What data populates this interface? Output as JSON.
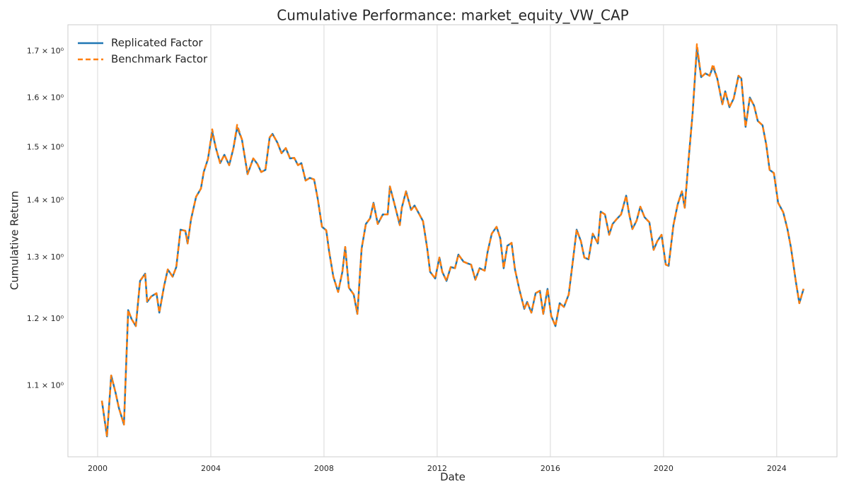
{
  "chart_data": {
    "type": "line",
    "title": "Cumulative Performance: market_equity_VW_CAP",
    "xlabel": "Date",
    "ylabel": "Cumulative Return",
    "log_y": true,
    "xgrid": true,
    "ygrid": false,
    "legend_position": "upper left",
    "xlim": [
      1998.95,
      2026.13
    ],
    "ylim": [
      1.003,
      1.76
    ],
    "xticks": [
      2000,
      2004,
      2008,
      2012,
      2016,
      2020,
      2024
    ],
    "yticks": [
      {
        "value": 1.1,
        "label": "1.1 × 10⁰"
      },
      {
        "value": 1.2,
        "label": "1.2 × 10⁰"
      },
      {
        "value": 1.3,
        "label": "1.3 × 10⁰"
      },
      {
        "value": 1.4,
        "label": "1.4 × 10⁰"
      },
      {
        "value": 1.5,
        "label": "1.5 × 10⁰"
      },
      {
        "value": 1.6,
        "label": "1.6 × 10⁰"
      },
      {
        "value": 1.7,
        "label": "1.7 × 10⁰"
      }
    ],
    "x": [
      2000.15,
      2000.33,
      2000.48,
      2000.63,
      2000.75,
      2000.93,
      2001.08,
      2001.2,
      2001.35,
      2001.5,
      2001.68,
      2001.75,
      2001.9,
      2002.08,
      2002.18,
      2002.35,
      2002.48,
      2002.65,
      2002.78,
      2002.93,
      2003.1,
      2003.18,
      2003.3,
      2003.48,
      2003.65,
      2003.75,
      2003.9,
      2004.05,
      2004.18,
      2004.33,
      2004.48,
      2004.65,
      2004.8,
      2004.93,
      2005.1,
      2005.3,
      2005.5,
      2005.65,
      2005.78,
      2005.93,
      2006.08,
      2006.18,
      2006.35,
      2006.5,
      2006.65,
      2006.8,
      2006.95,
      2007.08,
      2007.2,
      2007.35,
      2007.5,
      2007.65,
      2007.78,
      2007.93,
      2008.08,
      2008.18,
      2008.33,
      2008.5,
      2008.65,
      2008.75,
      2008.88,
      2009.05,
      2009.18,
      2009.33,
      2009.48,
      2009.63,
      2009.75,
      2009.9,
      2010.08,
      2010.25,
      2010.33,
      2010.48,
      2010.68,
      2010.75,
      2010.9,
      2011.08,
      2011.2,
      2011.35,
      2011.5,
      2011.65,
      2011.75,
      2011.93,
      2012.08,
      2012.18,
      2012.33,
      2012.48,
      2012.63,
      2012.75,
      2012.93,
      2013.08,
      2013.2,
      2013.35,
      2013.5,
      2013.68,
      2013.78,
      2013.93,
      2014.1,
      2014.23,
      2014.35,
      2014.48,
      2014.63,
      2014.75,
      2014.9,
      2015.08,
      2015.18,
      2015.33,
      2015.48,
      2015.63,
      2015.75,
      2015.9,
      2016.03,
      2016.18,
      2016.33,
      2016.48,
      2016.65,
      2016.78,
      2016.93,
      2017.08,
      2017.2,
      2017.35,
      2017.5,
      2017.68,
      2017.78,
      2017.93,
      2018.08,
      2018.2,
      2018.35,
      2018.5,
      2018.68,
      2018.78,
      2018.9,
      2019.05,
      2019.18,
      2019.33,
      2019.5,
      2019.65,
      2019.78,
      2019.93,
      2020.08,
      2020.18,
      2020.35,
      2020.5,
      2020.65,
      2020.75,
      2020.88,
      2021.03,
      2021.18,
      2021.33,
      2021.48,
      2021.63,
      2021.75,
      2021.9,
      2022.08,
      2022.18,
      2022.33,
      2022.48,
      2022.65,
      2022.75,
      2022.9,
      2023.05,
      2023.2,
      2023.33,
      2023.5,
      2023.63,
      2023.75,
      2023.9,
      2024.05,
      2024.23,
      2024.38,
      2024.5,
      2024.68,
      2024.8,
      2024.95
    ],
    "series": [
      {
        "name": "Replicated Factor",
        "color": "#1f77b4",
        "linestyle": "solid",
        "values": [
          1.079,
          1.03,
          1.115,
          1.091,
          1.069,
          1.046,
          1.214,
          1.2,
          1.189,
          1.261,
          1.273,
          1.227,
          1.236,
          1.241,
          1.21,
          1.253,
          1.28,
          1.268,
          1.284,
          1.348,
          1.346,
          1.324,
          1.366,
          1.407,
          1.422,
          1.453,
          1.478,
          1.531,
          1.499,
          1.47,
          1.486,
          1.466,
          1.499,
          1.54,
          1.516,
          1.449,
          1.479,
          1.468,
          1.453,
          1.457,
          1.52,
          1.527,
          1.51,
          1.489,
          1.499,
          1.479,
          1.48,
          1.466,
          1.47,
          1.437,
          1.442,
          1.439,
          1.403,
          1.353,
          1.347,
          1.311,
          1.268,
          1.243,
          1.276,
          1.318,
          1.25,
          1.239,
          1.208,
          1.315,
          1.358,
          1.368,
          1.396,
          1.358,
          1.375,
          1.375,
          1.426,
          1.396,
          1.356,
          1.387,
          1.417,
          1.383,
          1.391,
          1.377,
          1.363,
          1.315,
          1.276,
          1.265,
          1.3,
          1.276,
          1.261,
          1.284,
          1.282,
          1.305,
          1.293,
          1.29,
          1.288,
          1.263,
          1.282,
          1.278,
          1.309,
          1.341,
          1.353,
          1.333,
          1.282,
          1.32,
          1.325,
          1.28,
          1.248,
          1.216,
          1.227,
          1.21,
          1.241,
          1.245,
          1.208,
          1.248,
          1.205,
          1.189,
          1.225,
          1.219,
          1.239,
          1.288,
          1.348,
          1.328,
          1.3,
          1.297,
          1.341,
          1.324,
          1.38,
          1.375,
          1.339,
          1.358,
          1.367,
          1.375,
          1.409,
          1.377,
          1.349,
          1.364,
          1.389,
          1.37,
          1.361,
          1.313,
          1.328,
          1.339,
          1.288,
          1.286,
          1.356,
          1.393,
          1.417,
          1.387,
          1.473,
          1.57,
          1.708,
          1.644,
          1.652,
          1.647,
          1.667,
          1.641,
          1.587,
          1.614,
          1.581,
          1.599,
          1.647,
          1.641,
          1.541,
          1.601,
          1.584,
          1.553,
          1.544,
          1.506,
          1.457,
          1.451,
          1.396,
          1.379,
          1.349,
          1.318,
          1.259,
          1.225,
          1.248
        ]
      },
      {
        "name": "Benchmark Factor",
        "color": "#ff7f0e",
        "linestyle": "dashed",
        "values": [
          1.079,
          1.03,
          1.115,
          1.091,
          1.069,
          1.046,
          1.214,
          1.2,
          1.189,
          1.261,
          1.273,
          1.227,
          1.236,
          1.241,
          1.21,
          1.253,
          1.28,
          1.268,
          1.284,
          1.348,
          1.346,
          1.324,
          1.366,
          1.407,
          1.422,
          1.453,
          1.478,
          1.536,
          1.499,
          1.47,
          1.486,
          1.466,
          1.499,
          1.545,
          1.516,
          1.449,
          1.479,
          1.468,
          1.453,
          1.457,
          1.52,
          1.527,
          1.51,
          1.489,
          1.499,
          1.479,
          1.48,
          1.466,
          1.47,
          1.437,
          1.442,
          1.439,
          1.403,
          1.353,
          1.347,
          1.311,
          1.268,
          1.243,
          1.276,
          1.318,
          1.25,
          1.239,
          1.208,
          1.315,
          1.358,
          1.368,
          1.396,
          1.358,
          1.375,
          1.375,
          1.426,
          1.396,
          1.356,
          1.387,
          1.417,
          1.383,
          1.391,
          1.377,
          1.363,
          1.315,
          1.276,
          1.265,
          1.3,
          1.276,
          1.261,
          1.284,
          1.282,
          1.305,
          1.293,
          1.29,
          1.288,
          1.263,
          1.282,
          1.278,
          1.309,
          1.341,
          1.353,
          1.333,
          1.282,
          1.32,
          1.325,
          1.28,
          1.248,
          1.216,
          1.227,
          1.21,
          1.241,
          1.245,
          1.208,
          1.248,
          1.205,
          1.189,
          1.225,
          1.219,
          1.239,
          1.288,
          1.348,
          1.328,
          1.3,
          1.297,
          1.341,
          1.324,
          1.38,
          1.375,
          1.339,
          1.358,
          1.367,
          1.375,
          1.409,
          1.377,
          1.349,
          1.364,
          1.389,
          1.37,
          1.361,
          1.313,
          1.328,
          1.339,
          1.288,
          1.286,
          1.356,
          1.393,
          1.417,
          1.387,
          1.473,
          1.57,
          1.716,
          1.644,
          1.652,
          1.647,
          1.672,
          1.641,
          1.587,
          1.614,
          1.581,
          1.599,
          1.647,
          1.641,
          1.541,
          1.601,
          1.584,
          1.553,
          1.544,
          1.506,
          1.457,
          1.451,
          1.396,
          1.379,
          1.349,
          1.318,
          1.259,
          1.225,
          1.248
        ]
      }
    ]
  }
}
